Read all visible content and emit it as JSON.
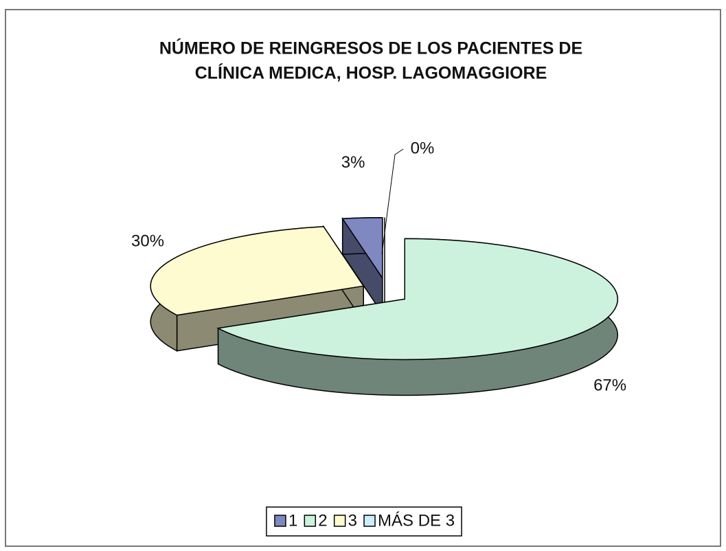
{
  "chart_data": {
    "type": "pie",
    "title": [
      "NÚMERO DE REINGRESOS DE LOS PACIENTES DE",
      "CLÍNICA MEDICA, HOSP. LAGOMAGGIORE"
    ],
    "categories": [
      "1",
      "2",
      "3",
      "MÁS DE 3"
    ],
    "values": [
      3,
      67,
      30,
      0
    ],
    "value_labels": [
      "3%",
      "67%",
      "30%",
      "0%"
    ],
    "colors": [
      "#7f88c0",
      "#ccf2dd",
      "#fffbd0",
      "#ccecff"
    ],
    "legend": "bottom"
  }
}
